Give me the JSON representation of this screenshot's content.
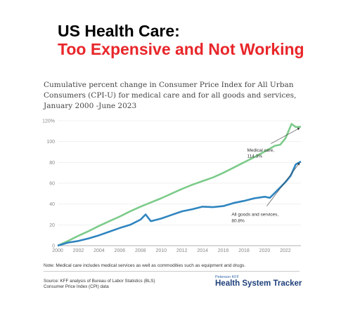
{
  "slide": {
    "title_line1": "US Health Care:",
    "title_line2": "Too Expensive and Not Working",
    "title_color": "#000000",
    "subtitle_color": "#e8262a"
  },
  "chart_data": {
    "type": "line",
    "title": "Cumulative percent change in Consumer Price Index for All Urban Consumers (CPI-U) for medical care and for all goods and services, January 2000 -June 2023",
    "x_ticks": [
      "2000",
      "2002",
      "2004",
      "2006",
      "2008",
      "2010",
      "2012",
      "2014",
      "2016",
      "2018",
      "2020",
      "2022"
    ],
    "y_ticks": [
      "0",
      "20",
      "40",
      "60",
      "80",
      "100",
      "120%"
    ],
    "xlim": [
      2000,
      2023.5
    ],
    "ylim": [
      0,
      120
    ],
    "grid": true,
    "series": [
      {
        "name": "Medical care",
        "color": "#7ccb8a",
        "points": [
          [
            2000,
            0
          ],
          [
            2001,
            4.5
          ],
          [
            2002,
            9.5
          ],
          [
            2003,
            14
          ],
          [
            2004,
            19
          ],
          [
            2005,
            23.5
          ],
          [
            2006,
            28
          ],
          [
            2007,
            33
          ],
          [
            2008,
            37.5
          ],
          [
            2009,
            41.5
          ],
          [
            2010,
            45.5
          ],
          [
            2011,
            50
          ],
          [
            2012,
            54.5
          ],
          [
            2013,
            58.5
          ],
          [
            2014,
            62
          ],
          [
            2015,
            65.5
          ],
          [
            2016,
            70
          ],
          [
            2017,
            75
          ],
          [
            2018,
            80
          ],
          [
            2019,
            85
          ],
          [
            2020,
            90.5
          ],
          [
            2021,
            96
          ],
          [
            2021.5,
            97
          ],
          [
            2022,
            103
          ],
          [
            2022.6,
            117
          ],
          [
            2023,
            114
          ],
          [
            2023.5,
            114.3
          ]
        ],
        "end_label": "Medical care,",
        "end_value": "114.3%"
      },
      {
        "name": "All goods and services",
        "color": "#2f85c0",
        "points": [
          [
            2000,
            0
          ],
          [
            2001,
            3
          ],
          [
            2002,
            4.5
          ],
          [
            2003,
            7
          ],
          [
            2004,
            10
          ],
          [
            2005,
            13.5
          ],
          [
            2006,
            17
          ],
          [
            2007,
            20
          ],
          [
            2008,
            25
          ],
          [
            2008.5,
            30
          ],
          [
            2009,
            23.5
          ],
          [
            2010,
            26
          ],
          [
            2011,
            29.5
          ],
          [
            2012,
            33
          ],
          [
            2013,
            35
          ],
          [
            2014,
            37.5
          ],
          [
            2015,
            37
          ],
          [
            2016,
            38
          ],
          [
            2017,
            41
          ],
          [
            2018,
            43
          ],
          [
            2019,
            45.5
          ],
          [
            2020,
            47
          ],
          [
            2020.5,
            46
          ],
          [
            2021,
            51
          ],
          [
            2022,
            61
          ],
          [
            2022.5,
            67
          ],
          [
            2023,
            78
          ],
          [
            2023.5,
            80.8
          ]
        ],
        "end_label": "All goods and services,",
        "end_value": "80.8%"
      }
    ]
  },
  "footer": {
    "note": "Note: Medical care includes medical services as well as commodities such as equipment and drugs.",
    "source_line1": "Source: KFF analysis of Bureau of Labor Statistics (BLS)",
    "source_line2": "Consumer Price Index (CPI) data",
    "brand_small": "Peterson KFF",
    "brand_main": "Health System Tracker"
  }
}
